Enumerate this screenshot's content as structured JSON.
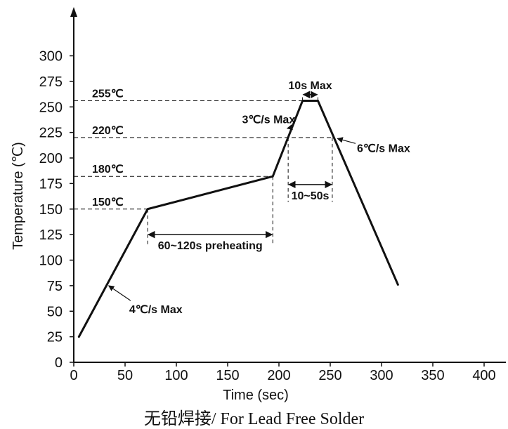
{
  "chart_data": {
    "type": "line",
    "xlabel": "Time (sec)",
    "ylabel": "Temperature (℃)",
    "caption": "无铅焊接/ For Lead Free Solder",
    "xlim": [
      0,
      420
    ],
    "ylim": [
      0,
      310
    ],
    "x_ticks": [
      0,
      50,
      100,
      150,
      200,
      250,
      300,
      350,
      400
    ],
    "y_ticks": [
      0,
      25,
      50,
      75,
      100,
      125,
      150,
      175,
      200,
      225,
      250,
      275,
      300
    ],
    "grid": false,
    "series": [
      {
        "x": [
          5,
          72,
          194,
          223,
          238,
          316
        ],
        "y": [
          25,
          150,
          182,
          256,
          256,
          76
        ]
      }
    ],
    "reference_lines": [
      {
        "label": "255℃",
        "y": 256,
        "x_end": 223
      },
      {
        "label": "220℃",
        "y": 220,
        "x_end": 252
      },
      {
        "label": "180℃",
        "y": 182,
        "x_end": 194
      },
      {
        "label": "150℃",
        "y": 150,
        "x_end": 72
      }
    ],
    "vertical_markers": [
      {
        "x": 72,
        "y_from": 150,
        "y_to": 115
      },
      {
        "x": 194,
        "y_from": 182,
        "y_to": 115
      },
      {
        "x": 209,
        "y_from": 220,
        "y_to": 157
      },
      {
        "x": 252,
        "y_from": 220,
        "y_to": 157
      },
      {
        "x": 223,
        "y_from": 256,
        "y_to": 262
      },
      {
        "x": 238,
        "y_from": 256,
        "y_to": 262
      }
    ],
    "interval_annotations": [
      {
        "label": "60~120s preheating",
        "x_start": 72,
        "x_end": 194,
        "y": 125
      },
      {
        "label": "10~50s",
        "x_start": 209,
        "x_end": 252,
        "y": 174
      },
      {
        "label": "10s Max",
        "x_start": 223,
        "x_end": 238,
        "y": 262
      }
    ],
    "slope_annotations": [
      {
        "label": "4℃/s Max",
        "text_x": 54,
        "text_y": 48,
        "target_x": 34,
        "target_y": 75
      },
      {
        "label": "3℃/s Max",
        "text_x": 164,
        "text_y": 234,
        "target_x": 208,
        "target_y": 229
      },
      {
        "label": "6℃/s Max",
        "text_x": 276,
        "text_y": 206,
        "target_x": 257,
        "target_y": 219
      }
    ]
  }
}
